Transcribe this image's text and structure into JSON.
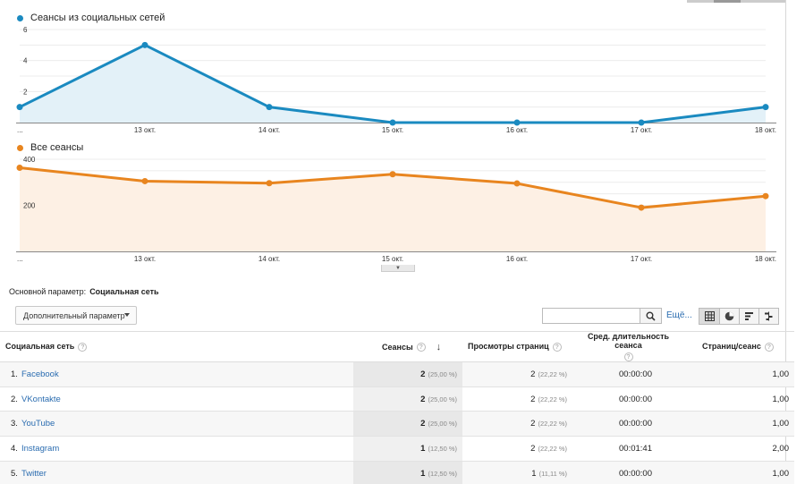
{
  "chart_data": [
    {
      "type": "area",
      "legend": "Сеансы из социальных сетей",
      "color": "#1a8ac0",
      "fill": "#e3f1f8",
      "x": [
        "...",
        "13 окт.",
        "14 окт.",
        "15 окт.",
        "16 окт.",
        "17 окт.",
        "18 окт."
      ],
      "values": [
        1,
        5,
        1,
        0,
        0,
        0,
        1
      ],
      "yticks": [
        2,
        4,
        6
      ],
      "ylim": [
        0,
        6
      ]
    },
    {
      "type": "area",
      "legend": "Все сеансы",
      "color": "#e8851f",
      "fill": "#fdf0e4",
      "x": [
        "...",
        "13 окт.",
        "14 окт.",
        "15 окт.",
        "16 окт.",
        "17 окт.",
        "18 окт."
      ],
      "values": [
        363,
        305,
        296,
        335,
        295,
        190,
        240
      ],
      "yticks": [
        200,
        400
      ],
      "ylim": [
        0,
        400
      ]
    }
  ],
  "controls": {
    "primary_dimension_label": "Основной параметр:",
    "primary_dimension_value": "Социальная сеть",
    "secondary_dimension": "Дополнительный параметр",
    "more_link": "Ещё..."
  },
  "table": {
    "headers": {
      "network": "Социальная сеть",
      "sessions": "Сеансы",
      "pageviews": "Просмотры страниц",
      "duration": "Сред. длительность сеанса",
      "pages_per_session": "Страниц/сеанс"
    },
    "rows": [
      {
        "idx": "1.",
        "name": "Facebook",
        "sessions": "2",
        "sessions_pct": "(25,00 %)",
        "pageviews": "2",
        "pageviews_pct": "(22,22 %)",
        "duration": "00:00:00",
        "pps": "1,00"
      },
      {
        "idx": "2.",
        "name": "VKontakte",
        "sessions": "2",
        "sessions_pct": "(25,00 %)",
        "pageviews": "2",
        "pageviews_pct": "(22,22 %)",
        "duration": "00:00:00",
        "pps": "1,00"
      },
      {
        "idx": "3.",
        "name": "YouTube",
        "sessions": "2",
        "sessions_pct": "(25,00 %)",
        "pageviews": "2",
        "pageviews_pct": "(22,22 %)",
        "duration": "00:00:00",
        "pps": "1,00"
      },
      {
        "idx": "4.",
        "name": "Instagram",
        "sessions": "1",
        "sessions_pct": "(12,50 %)",
        "pageviews": "2",
        "pageviews_pct": "(22,22 %)",
        "duration": "00:01:41",
        "pps": "2,00"
      },
      {
        "idx": "5.",
        "name": "Twitter",
        "sessions": "1",
        "sessions_pct": "(12,50 %)",
        "pageviews": "1",
        "pageviews_pct": "(11,11 %)",
        "duration": "00:00:00",
        "pps": "1,00"
      }
    ]
  }
}
